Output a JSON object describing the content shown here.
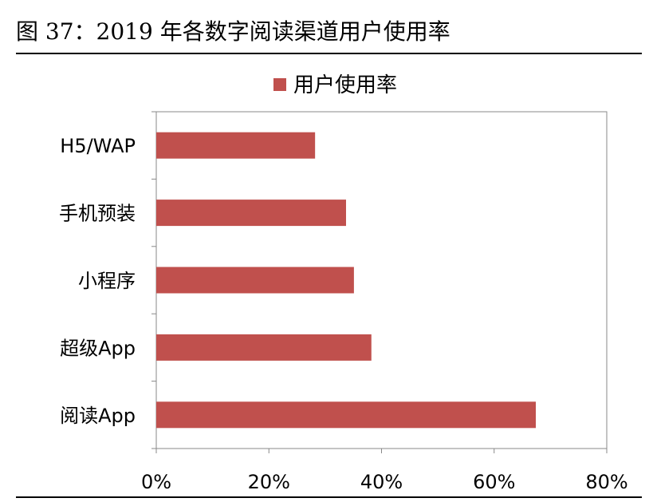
{
  "figure_title": "图 37：2019 年各数字阅读渠道用户使用率",
  "chart_data": {
    "type": "bar",
    "orientation": "horizontal",
    "categories": [
      "H5/WAP",
      "手机预装",
      "小程序",
      "超级App",
      "阅读App"
    ],
    "series": [
      {
        "name": "用户使用率",
        "values": [
          28.2,
          33.7,
          35.1,
          38.2,
          67.4
        ]
      }
    ],
    "x_ticks": [
      "0%",
      "20%",
      "40%",
      "60%",
      "80%"
    ],
    "xlim": [
      0,
      80
    ],
    "grid": false,
    "legend_position": "top",
    "colors": {
      "bar": "#c0504d",
      "frame": "#888888"
    }
  }
}
